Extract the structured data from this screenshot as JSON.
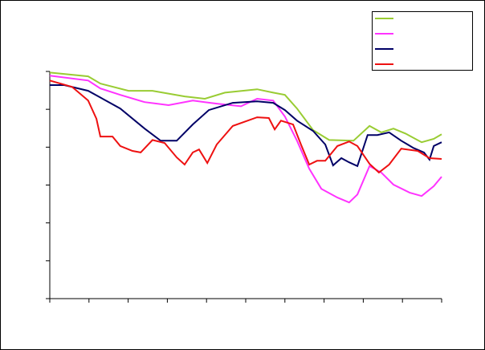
{
  "chart_data": {
    "type": "line",
    "xlim": [
      0,
      10
    ],
    "xticks": [
      0,
      1,
      2,
      3,
      4,
      5,
      6,
      7,
      8,
      9,
      10
    ],
    "ylim": [
      0,
      6
    ],
    "yticks": [
      0,
      1,
      2,
      3,
      4,
      5,
      6
    ],
    "legend": "top-right",
    "series": [
      {
        "color": "#99cc33",
        "x": [
          0,
          0.98,
          1.29,
          2.01,
          2.62,
          3.44,
          3.96,
          4.47,
          5.29,
          5.7,
          6.0,
          6.31,
          6.72,
          7.13,
          7.75,
          8.16,
          8.46,
          8.77,
          9.08,
          9.49,
          9.8,
          10
        ],
        "values": [
          5.97,
          5.87,
          5.68,
          5.49,
          5.49,
          5.34,
          5.28,
          5.44,
          5.53,
          5.44,
          5.38,
          5.02,
          4.45,
          4.19,
          4.17,
          4.56,
          4.39,
          4.49,
          4.36,
          4.13,
          4.22,
          4.34
        ]
      },
      {
        "color": "#ff33ff",
        "x": [
          0,
          0.98,
          1.29,
          1.8,
          2.42,
          3.03,
          3.65,
          4.26,
          4.88,
          5.29,
          5.7,
          6.0,
          6.31,
          6.62,
          6.93,
          7.34,
          7.64,
          7.85,
          8.16,
          8.46,
          8.77,
          9.18,
          9.49,
          9.8,
          10
        ],
        "values": [
          5.89,
          5.76,
          5.55,
          5.38,
          5.19,
          5.11,
          5.23,
          5.15,
          5.08,
          5.28,
          5.23,
          4.81,
          4.17,
          3.43,
          2.9,
          2.67,
          2.54,
          2.75,
          3.5,
          3.33,
          3.01,
          2.8,
          2.71,
          2.97,
          3.22
        ]
      },
      {
        "color": "#000066",
        "x": [
          0,
          0.37,
          0.98,
          1.8,
          2.42,
          2.83,
          3.24,
          3.65,
          4.06,
          4.67,
          5.29,
          5.7,
          6.0,
          6.31,
          6.72,
          7.03,
          7.23,
          7.44,
          7.64,
          7.85,
          8.11,
          8.36,
          8.66,
          8.97,
          9.28,
          9.55,
          9.69,
          9.8,
          10
        ],
        "values": [
          5.64,
          5.64,
          5.49,
          5.02,
          4.49,
          4.17,
          4.17,
          4.6,
          4.98,
          5.17,
          5.21,
          5.17,
          4.98,
          4.7,
          4.43,
          4.07,
          3.52,
          3.71,
          3.6,
          3.5,
          4.32,
          4.32,
          4.39,
          4.17,
          3.98,
          3.86,
          3.67,
          4.03,
          4.13
        ]
      },
      {
        "color": "#ee1111",
        "x": [
          0,
          0.57,
          0.98,
          1.19,
          1.29,
          1.6,
          1.8,
          2.11,
          2.32,
          2.62,
          2.93,
          3.24,
          3.44,
          3.65,
          3.81,
          4.02,
          4.26,
          4.67,
          5.29,
          5.59,
          5.74,
          5.9,
          6.21,
          6.41,
          6.62,
          6.82,
          7.03,
          7.34,
          7.64,
          7.85,
          8.16,
          8.4,
          8.66,
          8.97,
          9.39,
          9.69,
          10
        ],
        "values": [
          5.76,
          5.59,
          5.23,
          4.75,
          4.28,
          4.28,
          4.03,
          3.9,
          3.86,
          4.19,
          4.11,
          3.73,
          3.54,
          3.86,
          3.94,
          3.58,
          4.07,
          4.56,
          4.79,
          4.77,
          4.47,
          4.7,
          4.6,
          4.07,
          3.54,
          3.64,
          3.64,
          4.03,
          4.15,
          4.03,
          3.56,
          3.33,
          3.54,
          3.96,
          3.9,
          3.71,
          3.69
        ]
      }
    ]
  }
}
